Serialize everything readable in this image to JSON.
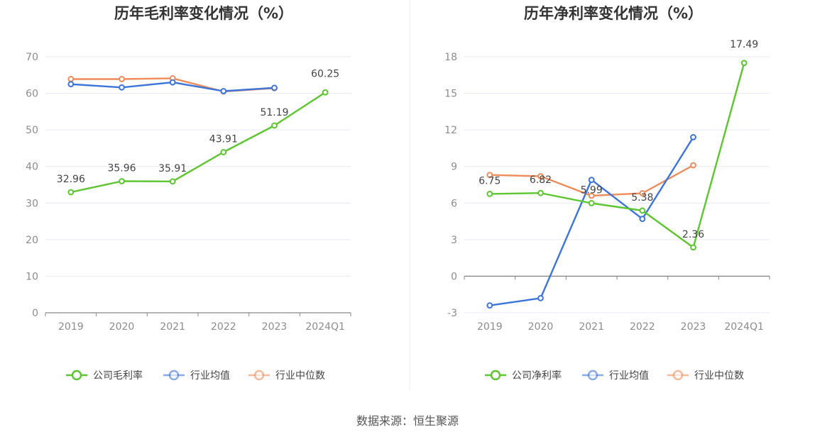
{
  "source_label": "数据来源：恒生聚源",
  "chart_data": [
    {
      "type": "line",
      "title": "历年毛利率变化情况（%）",
      "categories": [
        "2019",
        "2020",
        "2021",
        "2022",
        "2023",
        "2024Q1"
      ],
      "ylim": [
        0,
        70
      ],
      "yticks": [
        0,
        10,
        20,
        30,
        40,
        50,
        60,
        70
      ],
      "grid": true,
      "legend_position": "bottom",
      "series": [
        {
          "name": "公司毛利率",
          "color": "#5cc62f",
          "values": [
            32.96,
            35.96,
            35.91,
            43.91,
            51.19,
            60.25
          ],
          "labels": [
            "32.96",
            "35.96",
            "35.91",
            "43.91",
            "51.19",
            "60.25"
          ]
        },
        {
          "name": "行业均值",
          "color": "#3b74db",
          "values": [
            62.5,
            61.6,
            63.0,
            60.6,
            61.5,
            null
          ],
          "labels": null
        },
        {
          "name": "行业中位数",
          "color": "#ef8c5c",
          "values": [
            63.9,
            63.9,
            64.1,
            60.5,
            61.4,
            null
          ],
          "labels": null
        }
      ]
    },
    {
      "type": "line",
      "title": "历年净利率变化情况（%）",
      "categories": [
        "2019",
        "2020",
        "2021",
        "2022",
        "2023",
        "2024Q1"
      ],
      "ylim": [
        -3,
        18
      ],
      "yticks": [
        -3,
        0,
        3,
        6,
        9,
        12,
        15,
        18
      ],
      "grid": true,
      "legend_position": "bottom",
      "series": [
        {
          "name": "公司净利率",
          "color": "#5cc62f",
          "values": [
            6.75,
            6.82,
            5.99,
            5.38,
            2.36,
            17.49
          ],
          "labels": [
            "6.75",
            "6.82",
            "5.99",
            "5.38",
            "2.36",
            "17.49"
          ]
        },
        {
          "name": "行业均值",
          "color": "#3b74db",
          "values": [
            -2.4,
            -1.8,
            7.9,
            4.7,
            11.4,
            null
          ],
          "labels": null
        },
        {
          "name": "行业中位数",
          "color": "#ef8c5c",
          "values": [
            8.3,
            8.2,
            6.6,
            6.8,
            9.1,
            null
          ],
          "labels": null
        }
      ]
    }
  ]
}
